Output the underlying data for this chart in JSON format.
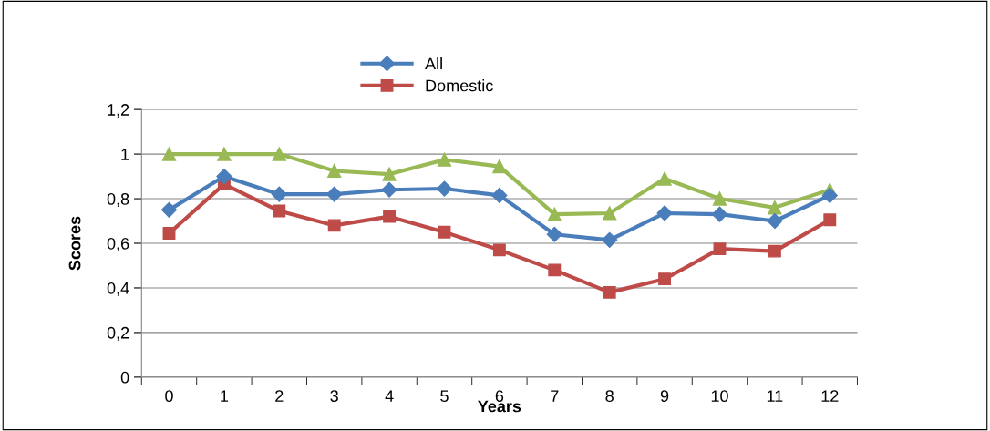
{
  "chart_data": {
    "type": "line",
    "xlabel": "Years",
    "ylabel": "Scores",
    "categories": [
      "0",
      "1",
      "2",
      "3",
      "4",
      "5",
      "6",
      "7",
      "8",
      "9",
      "10",
      "11",
      "12"
    ],
    "series": [
      {
        "name": "All",
        "color": "#4a7ebb",
        "marker": "diamond",
        "values": [
          0.75,
          0.9,
          0.82,
          0.82,
          0.84,
          0.845,
          0.815,
          0.64,
          0.615,
          0.735,
          0.73,
          0.7,
          0.815
        ]
      },
      {
        "name": "Domestic",
        "color": "#be4b48",
        "marker": "square",
        "values": [
          0.645,
          0.865,
          0.745,
          0.68,
          0.72,
          0.65,
          0.57,
          0.48,
          0.38,
          0.44,
          0.575,
          0.565,
          0.705
        ]
      },
      {
        "color": "#98b954",
        "marker": "triangle",
        "values": [
          1.0,
          1.0,
          1.0,
          0.925,
          0.91,
          0.975,
          0.945,
          0.73,
          0.735,
          0.89,
          0.8,
          0.76,
          0.84
        ]
      }
    ],
    "ylim": [
      0,
      1.2
    ],
    "yticks": [
      0,
      {
        "value": 0.2,
        "label": "0,2"
      },
      {
        "value": 0.4,
        "label": "0,4"
      },
      {
        "value": 0.6,
        "label": "0,6"
      },
      {
        "value": 0.8,
        "label": "0,8"
      },
      1,
      {
        "value": 1.2,
        "label": "1,2"
      }
    ],
    "grid": "y",
    "legend": "top"
  }
}
